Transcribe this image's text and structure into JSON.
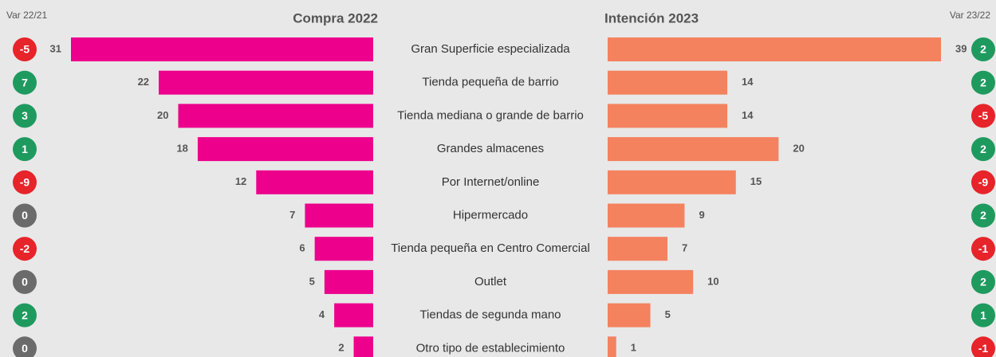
{
  "chart_data": {
    "type": "butterfly",
    "categories": [
      "Gran Superficie especializada",
      "Tienda pequeña de barrio",
      "Tienda mediana o grande de barrio",
      "Grandes almacenes",
      "Por Internet/online",
      "Hipermercado",
      "Tienda pequeña en Centro Comercial",
      "Outlet",
      "Tiendas de segunda mano",
      "Otro tipo de establecimiento"
    ],
    "series": [
      {
        "name": "Compra 2022",
        "color": "#ec008c",
        "values": [
          31,
          22,
          20,
          18,
          12,
          7,
          6,
          5,
          4,
          2
        ],
        "change_label": "Var 22/21",
        "changes": [
          -5,
          7,
          3,
          1,
          -9,
          0,
          -2,
          0,
          2,
          0
        ]
      },
      {
        "name": "Intención 2023",
        "color": "#f4825f",
        "values": [
          39,
          14,
          14,
          20,
          15,
          9,
          7,
          10,
          5,
          1
        ],
        "change_label": "Var 23/22",
        "changes": [
          2,
          2,
          -5,
          2,
          -9,
          2,
          -1,
          2,
          1,
          -1
        ]
      }
    ],
    "change_colors": {
      "positive": "#1f9a5f",
      "negative": "#e6242a",
      "zero": "#6b6b6b"
    }
  }
}
